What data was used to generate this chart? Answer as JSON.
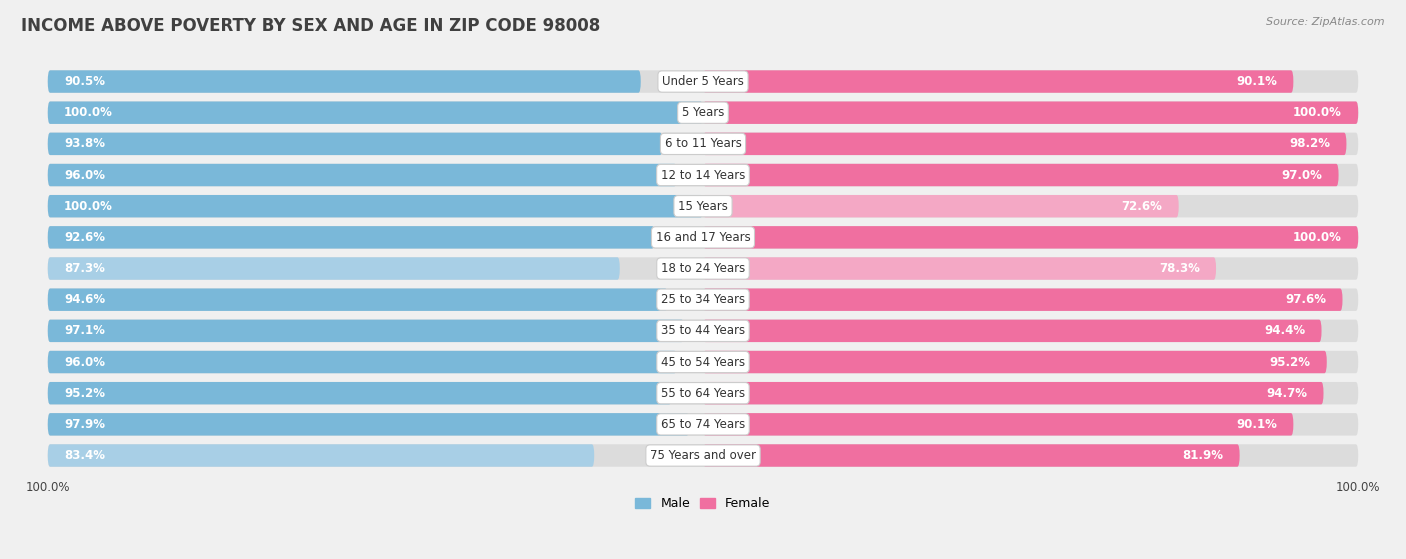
{
  "title": "INCOME ABOVE POVERTY BY SEX AND AGE IN ZIP CODE 98008",
  "source": "Source: ZipAtlas.com",
  "categories": [
    "Under 5 Years",
    "5 Years",
    "6 to 11 Years",
    "12 to 14 Years",
    "15 Years",
    "16 and 17 Years",
    "18 to 24 Years",
    "25 to 34 Years",
    "35 to 44 Years",
    "45 to 54 Years",
    "55 to 64 Years",
    "65 to 74 Years",
    "75 Years and over"
  ],
  "male_values": [
    90.5,
    100.0,
    93.8,
    96.0,
    100.0,
    92.6,
    87.3,
    94.6,
    97.1,
    96.0,
    95.2,
    97.9,
    83.4
  ],
  "female_values": [
    90.1,
    100.0,
    98.2,
    97.0,
    72.6,
    100.0,
    78.3,
    97.6,
    94.4,
    95.2,
    94.7,
    90.1,
    81.9
  ],
  "male_color_high": "#7ab8d9",
  "male_color_low": "#a8cfe6",
  "female_color_high": "#f06fa0",
  "female_color_low": "#f4a8c5",
  "background_color": "#f0f0f0",
  "bar_bg_color": "#dcdcdc",
  "title_fontsize": 12,
  "label_fontsize": 8.5,
  "value_fontsize": 8.5,
  "legend_male": "Male",
  "legend_female": "Female"
}
